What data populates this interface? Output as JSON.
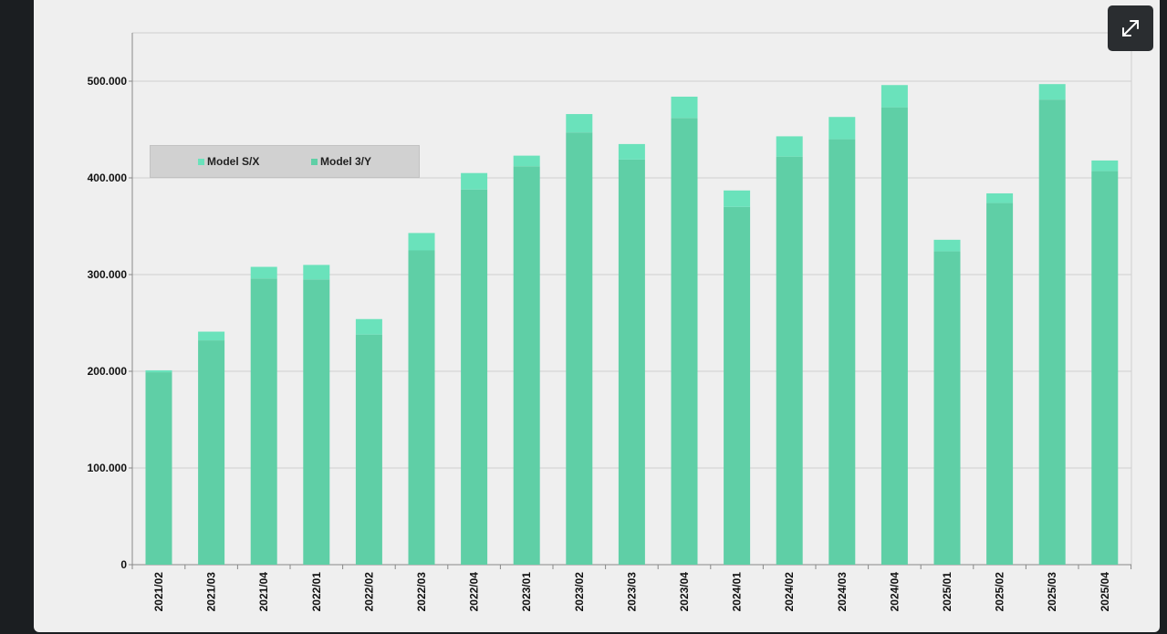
{
  "colors": {
    "model_sx": "#6ae2bb",
    "model_3y": "#5fcfa6",
    "grid": "#cfcfcf",
    "axis": "#888888",
    "text": "#111111"
  },
  "ui": {
    "expand_icon": "expand-arrows-icon"
  },
  "chart_data": {
    "type": "bar",
    "stacked": true,
    "title": "",
    "xlabel": "",
    "ylabel": "",
    "ylim": [
      0,
      550000
    ],
    "yticks": [
      0,
      100000,
      200000,
      300000,
      400000,
      500000
    ],
    "ytick_labels": [
      "0",
      "100.000",
      "200.000",
      "300.000",
      "400.000",
      "500.000"
    ],
    "grid": true,
    "legend_position": "upper-left",
    "categories": [
      "2021/02",
      "2021/03",
      "2021/04",
      "2022/01",
      "2022/02",
      "2022/03",
      "2022/04",
      "2023/01",
      "2023/02",
      "2023/03",
      "2023/04",
      "2024/01",
      "2024/02",
      "2024/03",
      "2024/04",
      "2025/01",
      "2025/02",
      "2025/03",
      "2025/04"
    ],
    "series": [
      {
        "name": "Model 3/Y",
        "values": [
          199000,
          232000,
          296000,
          295000,
          238000,
          325000,
          388000,
          412000,
          447000,
          419000,
          462000,
          370000,
          422000,
          440000,
          473000,
          324000,
          374000,
          481000,
          407000
        ]
      },
      {
        "name": "Model S/X",
        "values": [
          2000,
          9000,
          12000,
          15000,
          16000,
          18000,
          17000,
          11000,
          19000,
          16000,
          22000,
          17000,
          21000,
          23000,
          23000,
          12000,
          10000,
          16000,
          11000
        ]
      }
    ]
  }
}
